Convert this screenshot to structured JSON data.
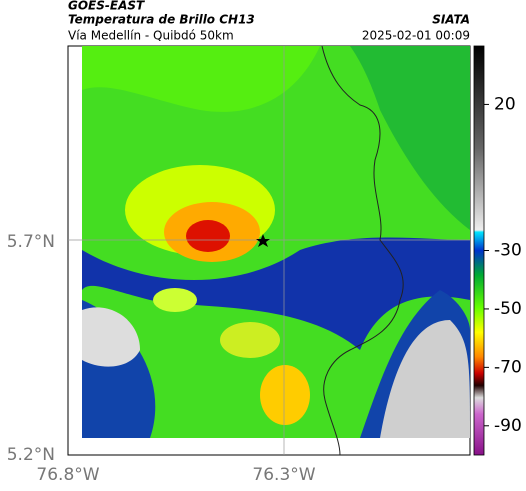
{
  "header": {
    "source": "GOES-EAST",
    "product": "Temperatura de Brillo CH13",
    "route": "Vía Medellín - Quibdó 50km",
    "agency": "SIATA",
    "datetime": "2025-02-01 00:09"
  },
  "axes": {
    "lat_labels": [
      "5.7°N",
      "5.2°N"
    ],
    "lon_labels": [
      "76.8°W",
      "76.3°W"
    ]
  },
  "colorbar": {
    "range": [
      40,
      -100
    ],
    "ticks": [
      20,
      -30,
      -50,
      -70,
      -90
    ]
  }
}
